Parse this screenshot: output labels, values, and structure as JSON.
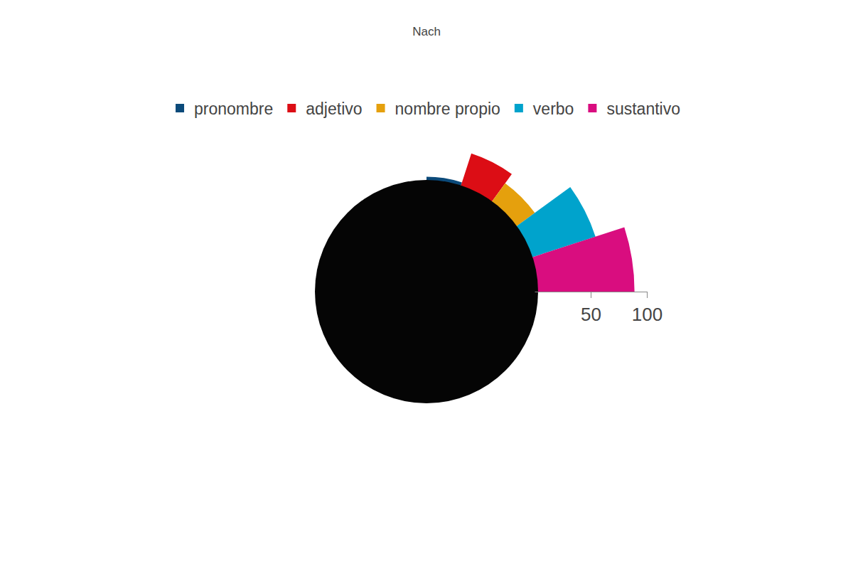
{
  "chart_data": {
    "type": "barpolar",
    "title": "Nach",
    "series": [
      {
        "name": "pronombre",
        "color": "#0b4a7a",
        "values": [
          6
        ]
      },
      {
        "name": "adjetivo",
        "color": "#dc0d15",
        "values": [
          33
        ]
      },
      {
        "name": "nombre propio",
        "color": "#e5a00d",
        "values": [
          23
        ]
      },
      {
        "name": "verbo",
        "color": "#00a3cc",
        "values": [
          62
        ]
      },
      {
        "name": "sustantivo",
        "color": "#d90d7f",
        "values": [
          89
        ]
      }
    ],
    "ylim": [
      0,
      100
    ],
    "yticks": [
      50,
      100
    ]
  }
}
